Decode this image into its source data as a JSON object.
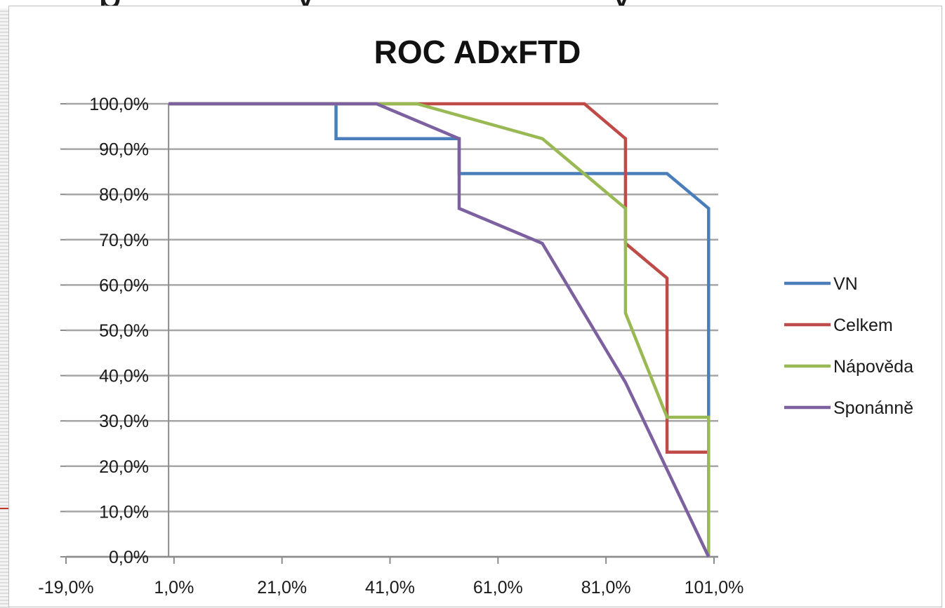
{
  "chart_data": {
    "type": "line",
    "title": "ROC ADxFTD",
    "xlabel": "",
    "ylabel": "",
    "xlim": [
      -19,
      101
    ],
    "ylim": [
      0,
      100
    ],
    "x_ticks": [
      -19,
      1,
      21,
      41,
      61,
      81,
      101
    ],
    "y_ticks": [
      0,
      10,
      20,
      30,
      40,
      50,
      60,
      70,
      80,
      90,
      100
    ],
    "x_tick_labels": [
      "-19,0%",
      "1,0%",
      "21,0%",
      "41,0%",
      "61,0%",
      "81,0%",
      "101,0%"
    ],
    "y_tick_labels": [
      "0,0%",
      "10,0%",
      "20,0%",
      "30,0%",
      "40,0%",
      "50,0%",
      "60,0%",
      "70,0%",
      "80,0%",
      "90,0%",
      "100,0%"
    ],
    "grid": "horizontal",
    "legend_position": "right",
    "series": [
      {
        "name": "VN",
        "color": "#4a7ebb",
        "x": [
          0,
          31,
          31,
          53.8,
          53.8,
          92.3,
          100,
          100
        ],
        "y": [
          100,
          100,
          92.3,
          92.3,
          84.6,
          84.6,
          76.9,
          30.8
        ]
      },
      {
        "name": "Celkem",
        "color": "#be4b48",
        "x": [
          0,
          77,
          84.6,
          84.6,
          92.3,
          92.3,
          100
        ],
        "y": [
          100,
          100,
          92.3,
          69.2,
          61.5,
          23.1,
          23.1
        ]
      },
      {
        "name": "Nápověda",
        "color": "#98b954",
        "x": [
          0,
          46,
          69.2,
          84.6,
          84.6,
          92.3,
          100,
          100
        ],
        "y": [
          100,
          100,
          92.3,
          76.9,
          53.8,
          30.8,
          30.8,
          0
        ]
      },
      {
        "name": "Sponánně",
        "color": "#7d60a0",
        "x": [
          0,
          38.5,
          53.8,
          53.8,
          69.2,
          84.6,
          100
        ],
        "y": [
          100,
          100,
          92.3,
          76.9,
          69.2,
          38.5,
          0
        ]
      }
    ]
  },
  "colors": {
    "gridline": "#a6a6a6",
    "axis": "#8c8c8c",
    "background": "#ffffff"
  }
}
